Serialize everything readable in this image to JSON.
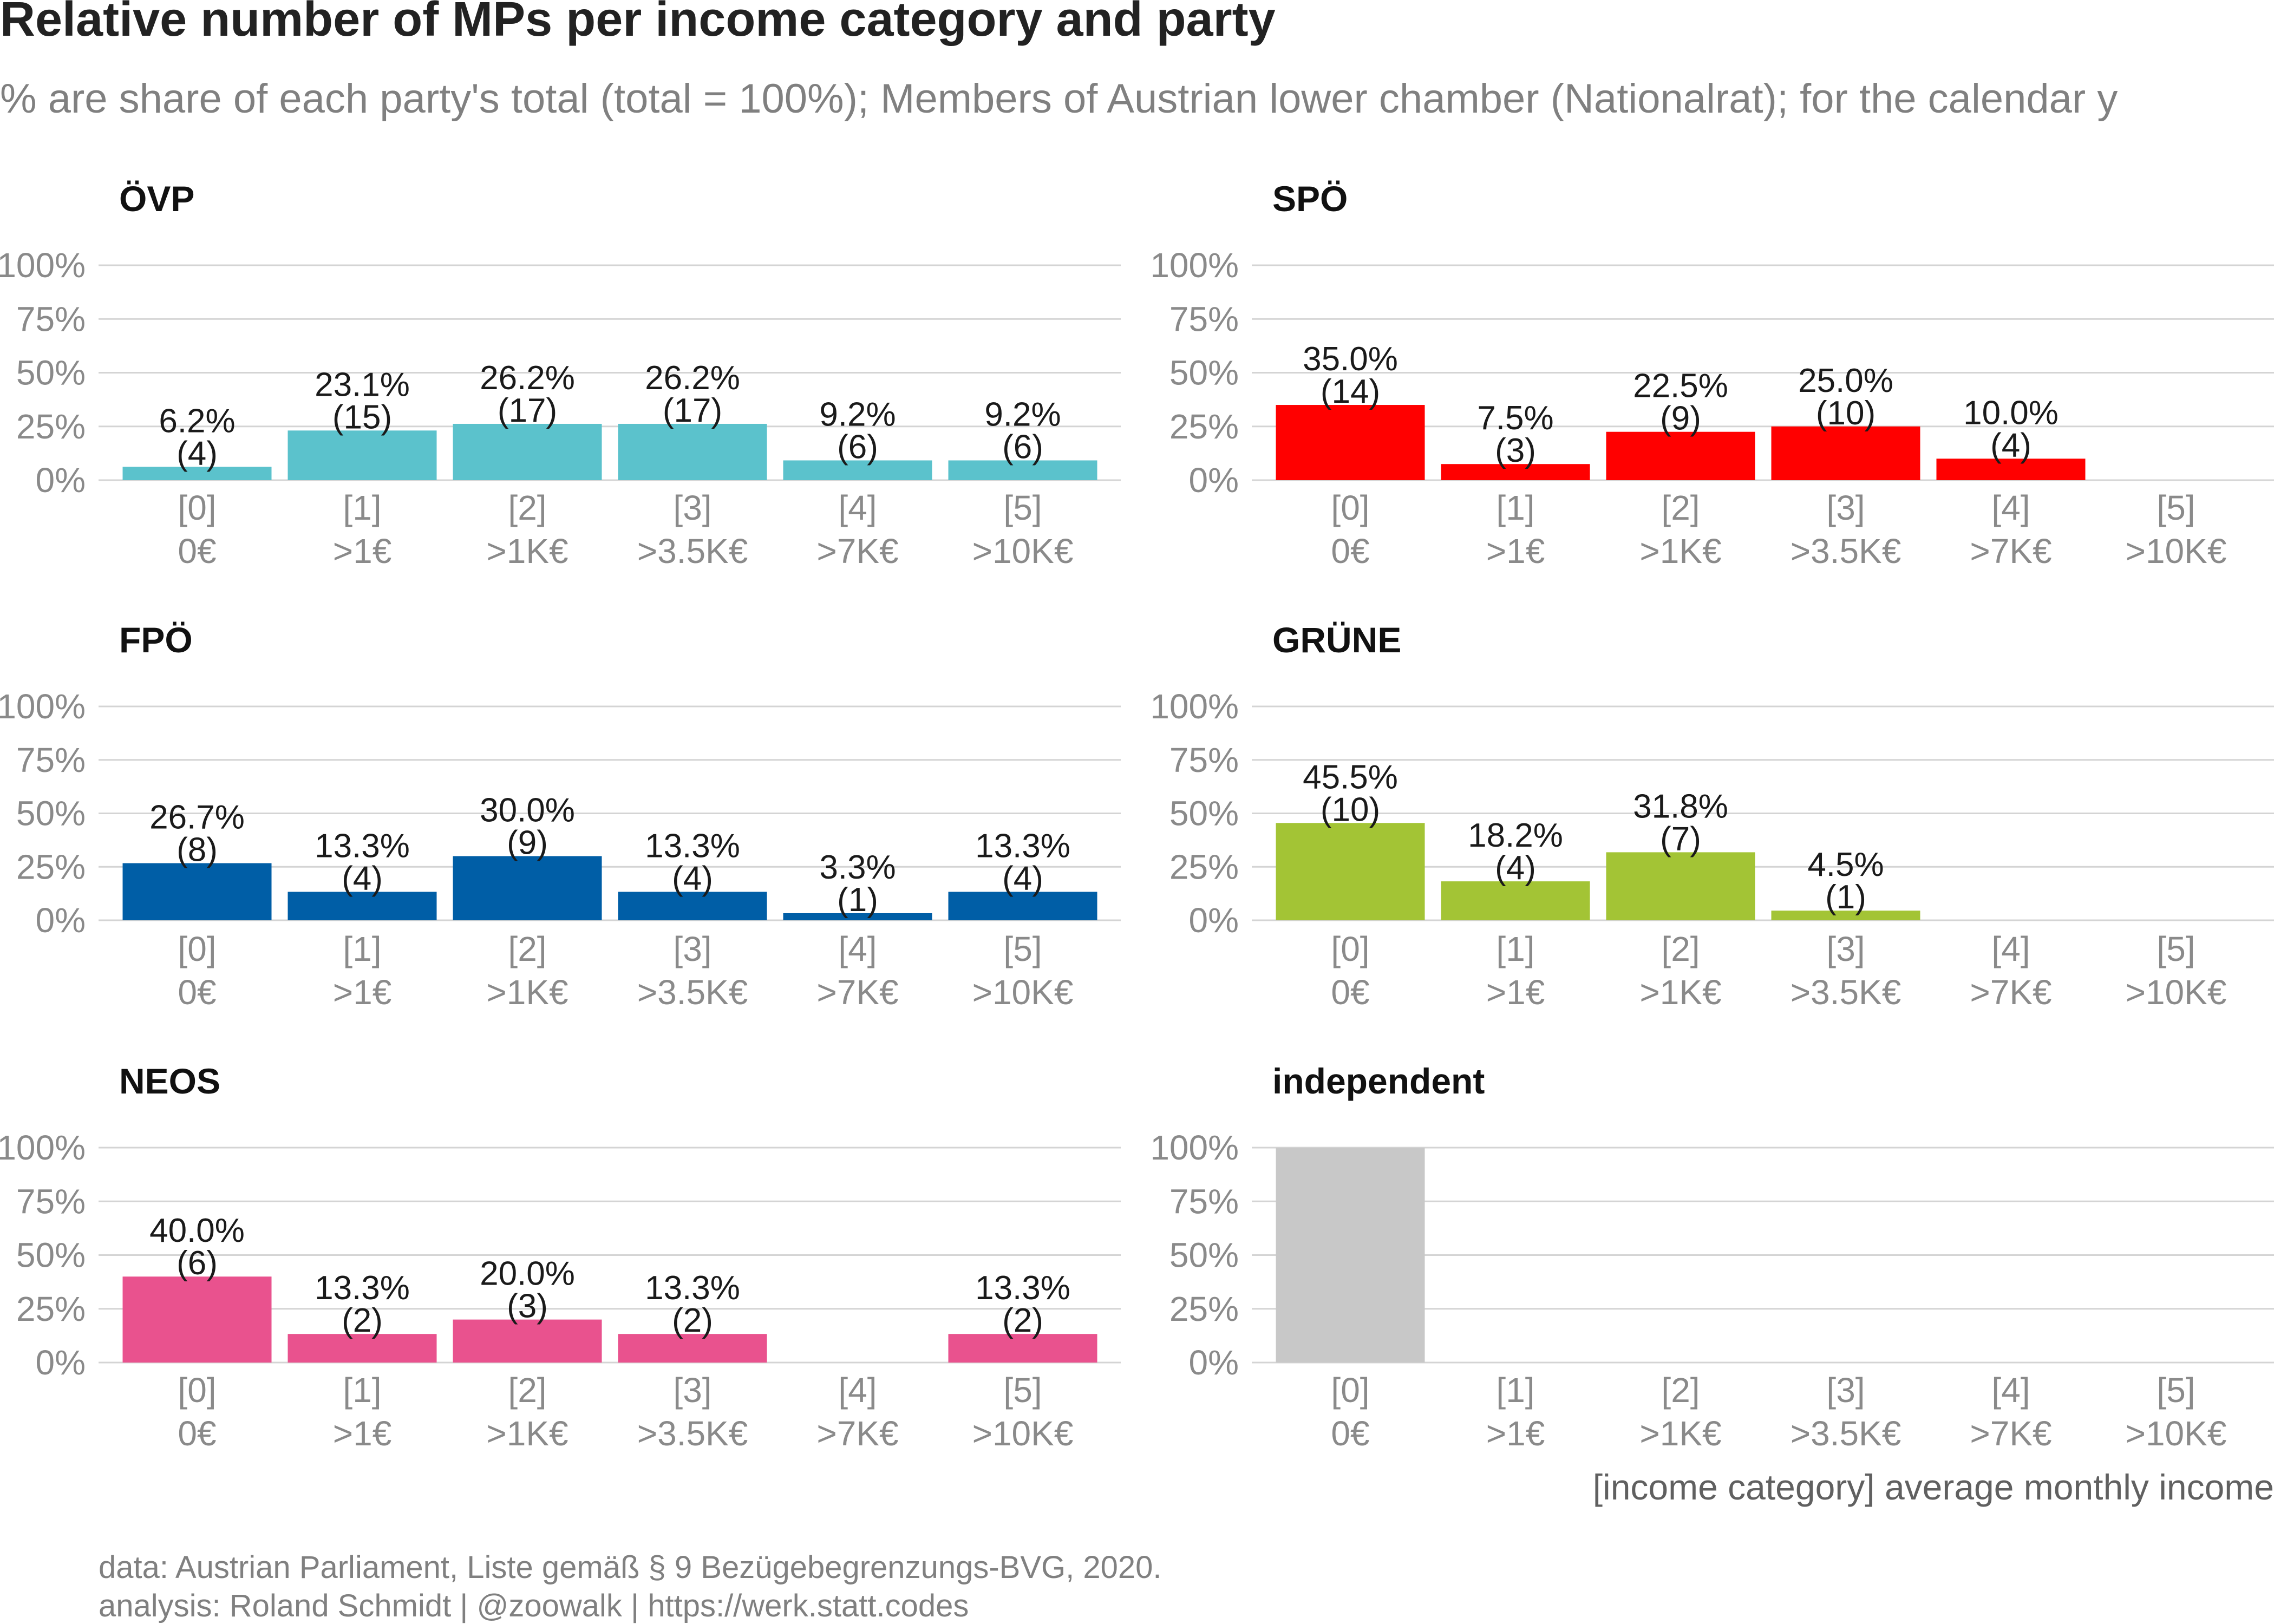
{
  "chart_data": {
    "type": "bar",
    "title": "Relative number of MPs per income category and party",
    "subtitle": "% are share of each party's total (total = 100%); Members of Austrian lower chamber (Nationalrat); for the calendar y",
    "xlabel": "[income category] average monthly income",
    "ylabel": "",
    "ylim": [
      0,
      100
    ],
    "y_ticks": [
      "100%",
      "75%",
      "50%",
      "25%",
      "0%"
    ],
    "y_tick_values": [
      100,
      75,
      50,
      25,
      0
    ],
    "categories": [
      "[0]",
      "[1]",
      "[2]",
      "[3]",
      "[4]",
      "[5]"
    ],
    "category_incomes": [
      "0€",
      ">1€",
      ">1K€",
      ">3.5K€",
      ">7K€",
      ">10K€"
    ],
    "facets": [
      {
        "name": "ÖVP",
        "color": "#5bc2cc",
        "values": [
          6.2,
          23.1,
          26.2,
          26.2,
          9.2,
          9.2
        ],
        "percent_labels": [
          "6.2%",
          "23.1%",
          "26.2%",
          "26.2%",
          "9.2%",
          "9.2%"
        ],
        "count_labels": [
          "(4)",
          "(15)",
          "(17)",
          "(17)",
          "(6)",
          "(6)"
        ]
      },
      {
        "name": "SPÖ",
        "color": "#ff0000",
        "values": [
          35.0,
          7.5,
          22.5,
          25.0,
          10.0,
          null
        ],
        "percent_labels": [
          "35.0%",
          "7.5%",
          "22.5%",
          "25.0%",
          "10.0%",
          null
        ],
        "count_labels": [
          "(14)",
          "(3)",
          "(9)",
          "(10)",
          "(4)",
          null
        ]
      },
      {
        "name": "FPÖ",
        "color": "#005ea6",
        "values": [
          26.7,
          13.3,
          30.0,
          13.3,
          3.3,
          13.3
        ],
        "percent_labels": [
          "26.7%",
          "13.3%",
          "30.0%",
          "13.3%",
          "3.3%",
          "13.3%"
        ],
        "count_labels": [
          "(8)",
          "(4)",
          "(9)",
          "(4)",
          "(1)",
          "(4)"
        ]
      },
      {
        "name": "GRÜNE",
        "color": "#a3c435",
        "values": [
          45.5,
          18.2,
          31.8,
          4.5,
          null,
          null
        ],
        "percent_labels": [
          "45.5%",
          "18.2%",
          "31.8%",
          "4.5%",
          null,
          null
        ],
        "count_labels": [
          "(10)",
          "(4)",
          "(7)",
          "(1)",
          null,
          null
        ]
      },
      {
        "name": "NEOS",
        "color": "#e9528e",
        "values": [
          40.0,
          13.3,
          20.0,
          13.3,
          null,
          13.3
        ],
        "percent_labels": [
          "40.0%",
          "13.3%",
          "20.0%",
          "13.3%",
          null,
          "13.3%"
        ],
        "count_labels": [
          "(6)",
          "(2)",
          "(3)",
          "(2)",
          null,
          "(2)"
        ]
      },
      {
        "name": "independent",
        "color": "#c8c8c8",
        "values": [
          100,
          null,
          null,
          null,
          null,
          null
        ],
        "percent_labels": [
          null,
          null,
          null,
          null,
          null,
          null
        ],
        "count_labels": [
          null,
          null,
          null,
          null,
          null,
          null
        ]
      }
    ],
    "caption_lines": [
      "data: Austrian Parliament, Liste gemäß § 9 Bezügebegrenzungs-BVG, 2020.",
      "analysis: Roland Schmidt | @zoowalk | https://werk.statt.codes"
    ],
    "grid": true,
    "legend": "none"
  }
}
